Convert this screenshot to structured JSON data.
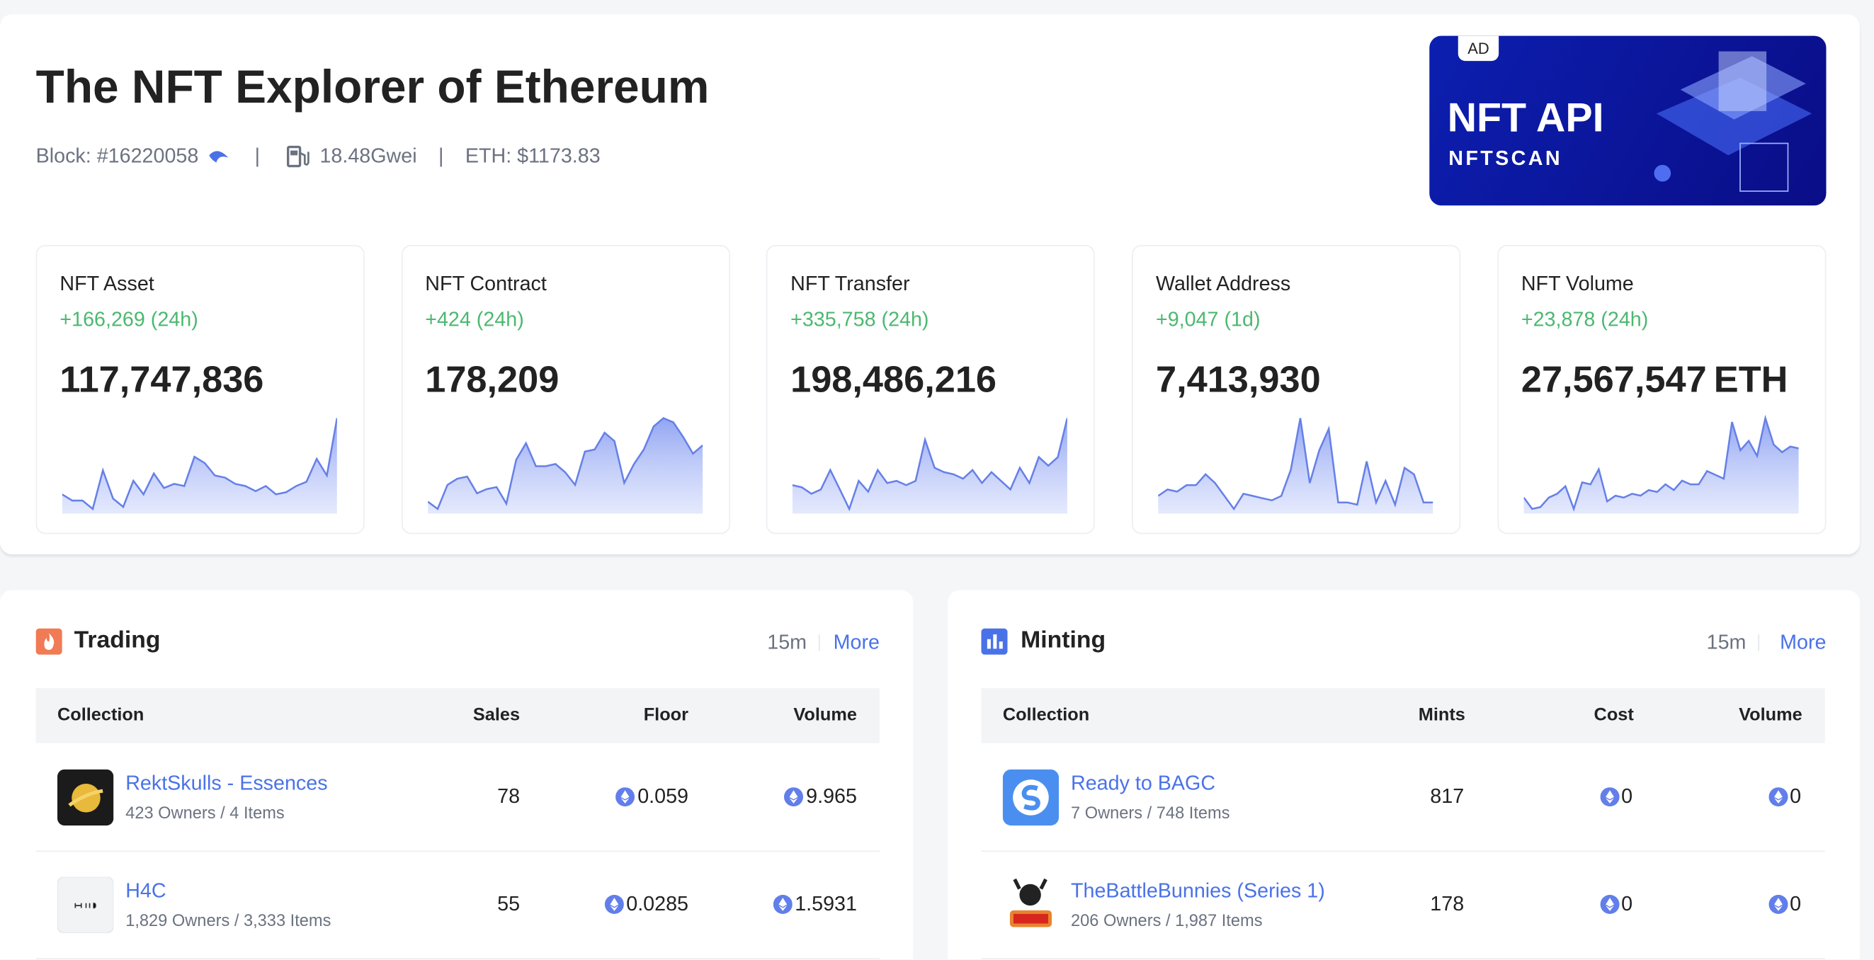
{
  "header": {
    "title": "The NFT Explorer of Ethereum",
    "block": "Block: #16220058",
    "gas": "18.48Gwei",
    "eth_price": "ETH: $1173.83"
  },
  "ad": {
    "tag": "AD",
    "title": "NFT API",
    "brand": "NFTSCAN"
  },
  "stats": [
    {
      "label": "NFT Asset",
      "change": "+166,269 (24h)",
      "value": "117,747,836",
      "sparkline": [
        22,
        16,
        16,
        8,
        45,
        18,
        10,
        35,
        22,
        42,
        28,
        32,
        30,
        58,
        52,
        40,
        38,
        32,
        30,
        25,
        30,
        22,
        24,
        30,
        34,
        56,
        40,
        95
      ]
    },
    {
      "label": "NFT Contract",
      "change": "+424 (24h)",
      "value": "178,209",
      "sparkline": [
        12,
        5,
        28,
        34,
        36,
        20,
        24,
        26,
        10,
        52,
        68,
        46,
        46,
        48,
        40,
        28,
        60,
        62,
        78,
        70,
        30,
        48,
        62,
        84,
        92,
        88,
        74,
        58,
        66
      ]
    },
    {
      "label": "NFT Transfer",
      "change": "+335,758 (24h)",
      "value": "198,486,216",
      "sparkline": [
        26,
        24,
        18,
        22,
        40,
        22,
        4,
        30,
        20,
        40,
        28,
        30,
        26,
        30,
        68,
        42,
        38,
        36,
        32,
        40,
        28,
        38,
        30,
        22,
        42,
        28,
        52,
        44,
        52,
        88
      ]
    },
    {
      "label": "Wallet Address",
      "change": "+9,047 (1d)",
      "value": "7,413,930",
      "sparkline": [
        18,
        24,
        22,
        28,
        28,
        38,
        30,
        18,
        6,
        20,
        18,
        16,
        14,
        18,
        42,
        90,
        30,
        60,
        80,
        12,
        12,
        10,
        50,
        12,
        32,
        10,
        44,
        38,
        12,
        12
      ]
    },
    {
      "label": "NFT Volume",
      "change": "+23,878 (24h)",
      "value": "27,567,547",
      "unit": "ETH",
      "sparkline": [
        16,
        4,
        6,
        16,
        20,
        28,
        4,
        32,
        30,
        46,
        12,
        18,
        16,
        20,
        18,
        24,
        22,
        30,
        24,
        34,
        30,
        30,
        44,
        40,
        36,
        96,
        66,
        76,
        60,
        100,
        72,
        64,
        70,
        68
      ]
    }
  ],
  "trading": {
    "title": "Trading",
    "period": "15m",
    "more": "More",
    "columns": [
      "Collection",
      "Sales",
      "Floor",
      "Volume"
    ],
    "rows": [
      {
        "name": "RektSkulls - Essences",
        "sub": "423 Owners / 4 Items",
        "values": [
          78,
          0.059,
          9.965
        ]
      },
      {
        "name": "H4C",
        "sub": "1,829 Owners / 3,333 Items",
        "values": [
          55,
          0.0285,
          1.5931
        ]
      }
    ]
  },
  "minting": {
    "title": "Minting",
    "period": "15m",
    "more": "More",
    "columns": [
      "Collection",
      "Mints",
      "Cost",
      "Volume"
    ],
    "rows": [
      {
        "name": "Ready to BAGC",
        "sub": "7 Owners / 748 Items",
        "values": [
          817,
          0,
          0
        ]
      },
      {
        "name": "TheBattleBunnies (Series 1)",
        "sub": "206 Owners / 1,987 Items",
        "values": [
          178,
          0,
          0
        ]
      }
    ]
  }
}
